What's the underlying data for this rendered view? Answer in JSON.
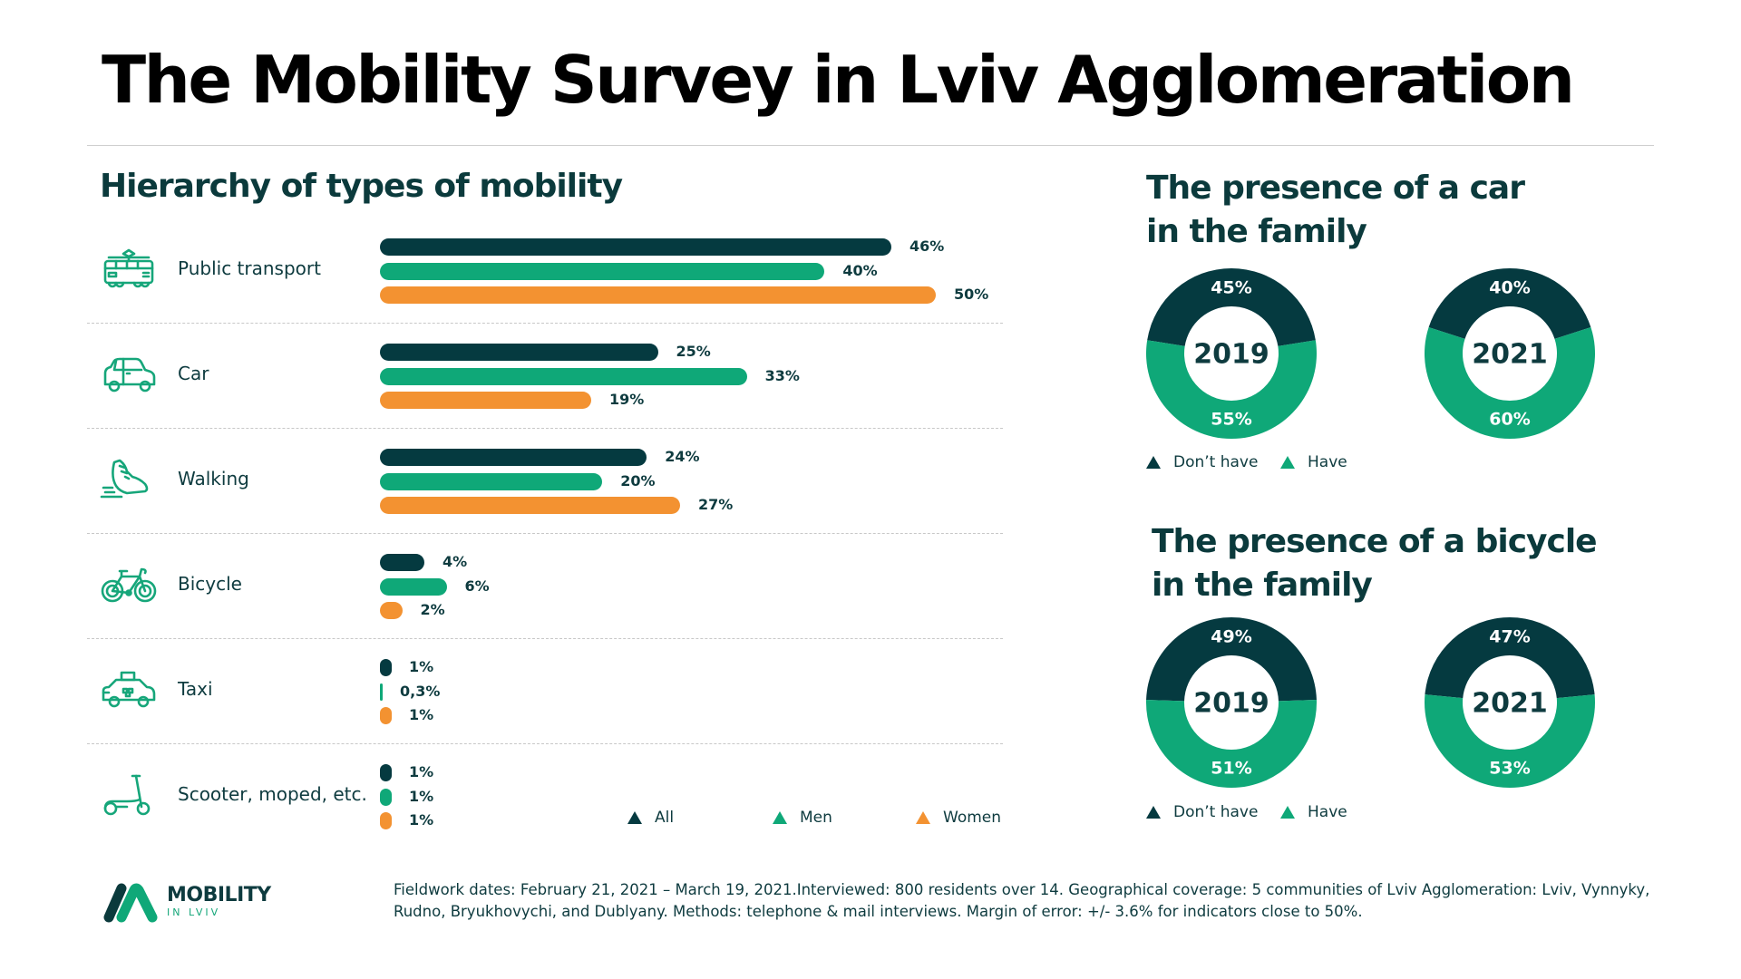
{
  "title": "The Mobility Survey in Lviv Agglomeration",
  "colors": {
    "all": "#053a40",
    "men": "#0fa878",
    "women": "#f39231",
    "text": "#0e3b3f",
    "icon": "#16a67a",
    "dont_have": "#053a40",
    "have": "#0fa878"
  },
  "hierarchy": {
    "title": "Hierarchy of types of mobility",
    "legend": [
      {
        "label": "All",
        "key": "all"
      },
      {
        "label": "Men",
        "key": "men"
      },
      {
        "label": "Women",
        "key": "women"
      }
    ],
    "rows": [
      {
        "label": "Public transport",
        "icon": "tram-icon",
        "all": "46%",
        "men": "40%",
        "women": "50%"
      },
      {
        "label": "Car",
        "icon": "car-icon",
        "all": "25%",
        "men": "33%",
        "women": "19%"
      },
      {
        "label": "Walking",
        "icon": "sneaker-icon",
        "all": "24%",
        "men": "20%",
        "women": "27%"
      },
      {
        "label": "Bicycle",
        "icon": "bicycle-icon",
        "all": "4%",
        "men": "6%",
        "women": "2%"
      },
      {
        "label": "Taxi",
        "icon": "taxi-icon",
        "all": "1%",
        "men": "0,3%",
        "women": "1%"
      },
      {
        "label": "Scooter, moped, etc.",
        "icon": "scooter-icon",
        "all": "1%",
        "men": "1%",
        "women": "1%"
      }
    ]
  },
  "car_presence": {
    "title_line1": "The presence of a car",
    "title_line2": "in the family",
    "legend": [
      "Don’t have",
      "Have"
    ],
    "donuts": [
      {
        "year": "2019",
        "dont_have_label": "45%",
        "have_label": "55%"
      },
      {
        "year": "2021",
        "dont_have_label": "40%",
        "have_label": "60%"
      }
    ]
  },
  "bicycle_presence": {
    "title_line1": "The presence of a bicycle",
    "title_line2": "in the family",
    "legend": [
      "Don’t have",
      "Have"
    ],
    "donuts": [
      {
        "year": "2019",
        "dont_have_label": "49%",
        "have_label": "51%"
      },
      {
        "year": "2021",
        "dont_have_label": "47%",
        "have_label": "53%"
      }
    ]
  },
  "footer": {
    "logo_word": "MOBILITY",
    "logo_sub": "IN LVIV",
    "text": "Fieldwork dates: February 21, 2021 – March 19, 2021.Interviewed: 800 residents over 14. Geographical coverage: 5 communities of Lviv Agglomeration: Lviv, Vynnyky, Rudno, Bryukhovychi, and Dublyany. Methods: telephone & mail interviews. Margin of error: +/- 3.6% for indicators close to 50%."
  },
  "chart_data": [
    {
      "type": "bar",
      "orientation": "horizontal",
      "title": "Hierarchy of types of mobility",
      "categories": [
        "Public transport",
        "Car",
        "Walking",
        "Bicycle",
        "Taxi",
        "Scooter, moped, etc."
      ],
      "series": [
        {
          "name": "All",
          "values": [
            46,
            25,
            24,
            4,
            1,
            1
          ]
        },
        {
          "name": "Men",
          "values": [
            40,
            33,
            20,
            6,
            0.3,
            1
          ]
        },
        {
          "name": "Women",
          "values": [
            50,
            19,
            27,
            2,
            1,
            1
          ]
        }
      ],
      "unit": "%",
      "legend": "bottom-right",
      "grid": false
    },
    {
      "type": "pie",
      "style": "donut",
      "title": "The presence of a car in the family",
      "center_label": "2019",
      "categories": [
        "Don’t have",
        "Have"
      ],
      "values": [
        45,
        55
      ]
    },
    {
      "type": "pie",
      "style": "donut",
      "title": "The presence of a car in the family",
      "center_label": "2021",
      "categories": [
        "Don’t have",
        "Have"
      ],
      "values": [
        40,
        60
      ]
    },
    {
      "type": "pie",
      "style": "donut",
      "title": "The presence of a bicycle in the family",
      "center_label": "2019",
      "categories": [
        "Don’t have",
        "Have"
      ],
      "values": [
        49,
        51
      ]
    },
    {
      "type": "pie",
      "style": "donut",
      "title": "The presence of a bicycle in the family",
      "center_label": "2021",
      "categories": [
        "Don’t have",
        "Have"
      ],
      "values": [
        47,
        53
      ]
    }
  ]
}
